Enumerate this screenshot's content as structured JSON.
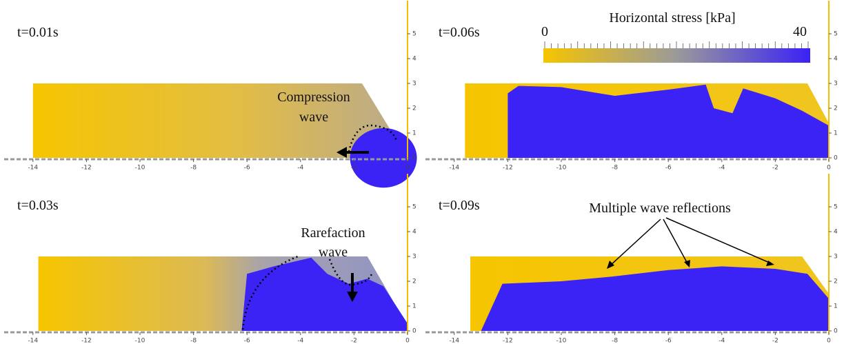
{
  "panels": [
    {
      "label": "t=0.01s"
    },
    {
      "label": "t=0.06s"
    },
    {
      "label": "t=0.03s"
    },
    {
      "label": "t=0.09s"
    }
  ],
  "axes": {
    "xticks": [
      -14,
      -12,
      -10,
      -8,
      -6,
      -4,
      -2,
      0
    ],
    "yticks": [
      0,
      1,
      2,
      3,
      4,
      5
    ]
  },
  "colorbar": {
    "title": "Horizontal stress [kPa]",
    "min": 0,
    "max": 40
  },
  "annotations": {
    "compression": [
      "Compression",
      "wave"
    ],
    "rarefaction": [
      "Rarefaction",
      "wave"
    ],
    "reflections": "Multiple wave reflections"
  }
}
